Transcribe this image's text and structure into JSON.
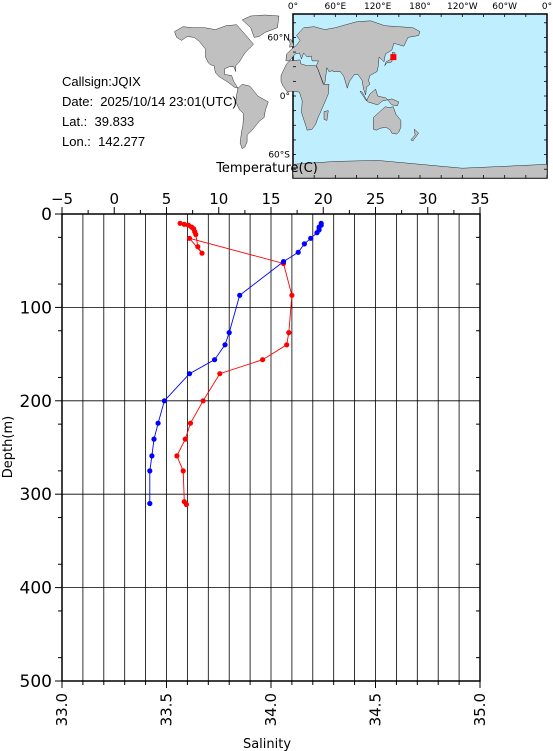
{
  "info": {
    "callsign": "Callsign:JQIX",
    "date": "Date:  2025/10/14 23:01(UTC)",
    "lat": "Lat.:  39.833",
    "lon": "Lon.:  142.277"
  },
  "map": {
    "lon_labels": [
      "0°",
      "60°E",
      "120°E",
      "180°",
      "120°W",
      "60°W",
      "0°"
    ],
    "lat_labels": [
      "60°N",
      "0°",
      "60°S"
    ],
    "ocean_color": "#bfefff",
    "land_color": "#c0c0c0",
    "marker_color": "#ff0000",
    "station": {
      "lon": 142.277,
      "lat": 39.833
    }
  },
  "chart_data": {
    "type": "line",
    "y_label": "Depth(m)",
    "y_range": [
      0,
      500
    ],
    "y_ticks": [
      "0",
      "100",
      "200",
      "300",
      "400",
      "500"
    ],
    "top_axis": {
      "label": "Temperature(C)",
      "range": [
        -5,
        35
      ],
      "ticks": [
        "−5",
        "0",
        "5",
        "10",
        "15",
        "20",
        "25",
        "30",
        "35"
      ]
    },
    "bottom_axis": {
      "label": "Salinity",
      "range": [
        33.0,
        35.0
      ],
      "ticks": [
        "33.0",
        "33.5",
        "34.0",
        "34.5",
        "35.0"
      ]
    },
    "grid": true,
    "series": [
      {
        "axis": "temperature",
        "color": "#ff0000",
        "points": [
          [
            6.3,
            10
          ],
          [
            6.7,
            11
          ],
          [
            7.1,
            12
          ],
          [
            7.4,
            14
          ],
          [
            7.6,
            16
          ],
          [
            7.7,
            19
          ],
          [
            7.8,
            22
          ],
          [
            8.0,
            35
          ],
          [
            8.4,
            42
          ],
          [
            7.2,
            26
          ],
          [
            16.2,
            53
          ],
          [
            17.0,
            87
          ],
          [
            16.7,
            127
          ],
          [
            16.5,
            140
          ],
          [
            14.2,
            156
          ],
          [
            10.1,
            171
          ],
          [
            8.5,
            200
          ],
          [
            7.3,
            224
          ],
          [
            6.8,
            241
          ],
          [
            6.0,
            259
          ],
          [
            6.6,
            275
          ],
          [
            6.7,
            308
          ],
          [
            6.9,
            311
          ]
        ]
      },
      {
        "axis": "salinity",
        "color": "#0000ff",
        "points": [
          [
            34.24,
            10
          ],
          [
            34.24,
            12
          ],
          [
            34.23,
            14
          ],
          [
            34.23,
            17
          ],
          [
            34.22,
            20
          ],
          [
            34.19,
            26
          ],
          [
            34.16,
            32
          ],
          [
            34.13,
            41
          ],
          [
            34.06,
            51
          ],
          [
            33.85,
            87
          ],
          [
            33.8,
            127
          ],
          [
            33.78,
            140
          ],
          [
            33.73,
            156
          ],
          [
            33.61,
            171
          ],
          [
            33.49,
            200
          ],
          [
            33.46,
            224
          ],
          [
            33.44,
            241
          ],
          [
            33.43,
            259
          ],
          [
            33.42,
            275
          ],
          [
            33.42,
            310
          ]
        ]
      }
    ]
  }
}
